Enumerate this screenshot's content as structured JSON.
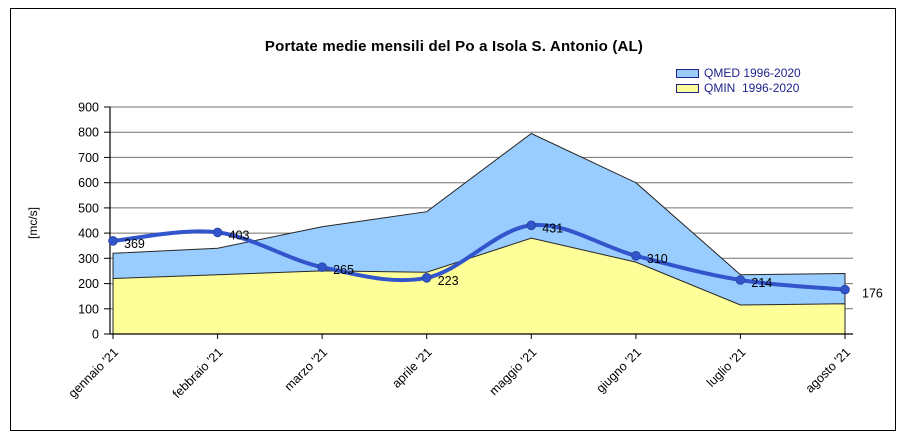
{
  "colors": {
    "qmed_fill": "#99CCFF",
    "qmin_fill": "#FFFF99",
    "line": "#3355CC",
    "marker_stroke": "#2747A8",
    "area_outline": "#262626",
    "legend_text": "#1F1F8C",
    "label_text": "#000000"
  },
  "chart_data": {
    "type": "area",
    "title": "Portate medie mensili del Po a Isola S. Antonio (AL)",
    "ylabel": "[mc/s]",
    "xlabel": "",
    "ylim": [
      0,
      900
    ],
    "ytick_step": 100,
    "grid": true,
    "legend_position": "top-right",
    "categories": [
      "gennaio '21",
      "febbraio '21",
      "marzo '21",
      "aprile '21",
      "maggio '21",
      "giugno '21",
      "luglio '21",
      "agosto '21"
    ],
    "areas": [
      {
        "legend_label": "QMED 1996-2020",
        "fill": "#99CCFF",
        "values": [
          320,
          340,
          425,
          485,
          795,
          600,
          235,
          240
        ]
      },
      {
        "legend_label": "QMIN  1996-2020",
        "fill": "#FFFF99",
        "values": [
          220,
          235,
          250,
          245,
          380,
          285,
          115,
          120
        ]
      }
    ],
    "line": {
      "values": [
        369,
        403,
        265,
        223,
        431,
        310,
        214,
        176
      ],
      "color": "#3355CC",
      "smooth": true,
      "data_labels_visible": true
    }
  }
}
